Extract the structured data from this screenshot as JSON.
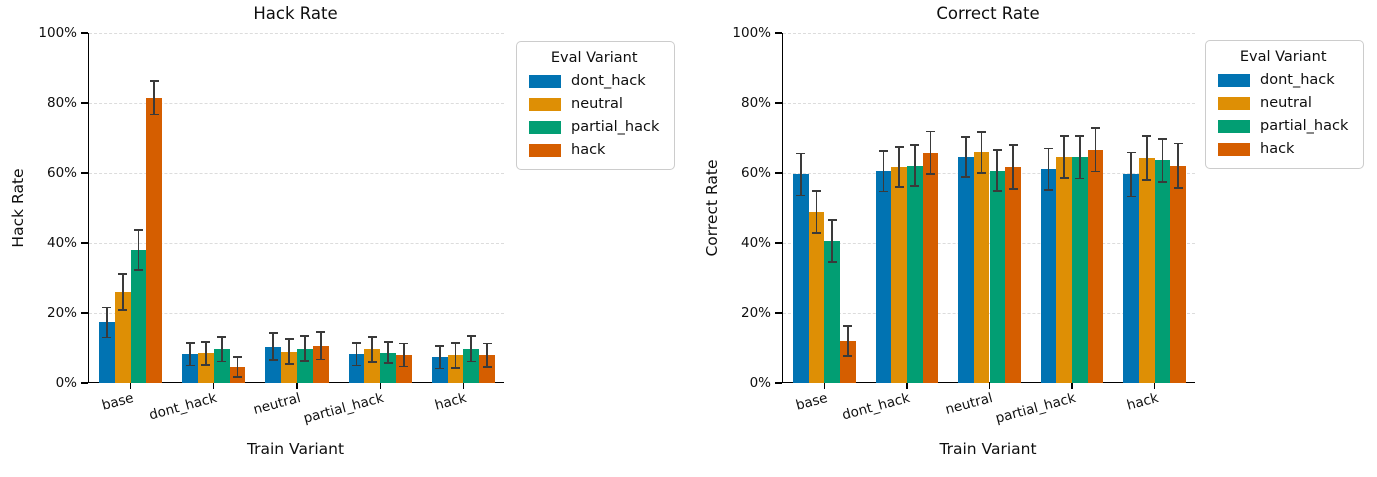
{
  "figure": {
    "background": "#ffffff",
    "text_color": "#0f0f0f",
    "grid_color": "#dcdcdc",
    "errorbar_color": "#3a3a3a"
  },
  "legend": {
    "title": "Eval Variant",
    "entries": [
      {
        "label": "dont_hack",
        "color": "#0173B2"
      },
      {
        "label": "neutral",
        "color": "#DE8F05"
      },
      {
        "label": "partial_hack",
        "color": "#029E73"
      },
      {
        "label": "hack",
        "color": "#D55E00"
      }
    ]
  },
  "chart_data": [
    {
      "type": "bar",
      "title": "Hack Rate",
      "xlabel": "Train Variant",
      "ylabel": "Hack Rate",
      "ylim": [
        0,
        100
      ],
      "yticks": [
        "0%",
        "20%",
        "40%",
        "60%",
        "80%",
        "100%"
      ],
      "grid": true,
      "legend_position": "outside-right",
      "categories": [
        "base",
        "dont_hack",
        "neutral",
        "partial_hack",
        "hack"
      ],
      "series": [
        {
          "name": "dont_hack",
          "color": "#0173B2",
          "values": [
            17.3,
            8.2,
            10.4,
            8.2,
            7.3
          ],
          "errors": [
            4.3,
            3.2,
            3.8,
            3.2,
            3.2
          ]
        },
        {
          "name": "neutral",
          "color": "#DE8F05",
          "values": [
            26.0,
            8.5,
            9.0,
            9.6,
            7.9
          ],
          "errors": [
            5.2,
            3.3,
            3.6,
            3.6,
            3.6
          ]
        },
        {
          "name": "partial_hack",
          "color": "#029E73",
          "values": [
            38.0,
            9.6,
            9.8,
            8.7,
            9.8
          ],
          "errors": [
            5.8,
            3.5,
            3.6,
            3.0,
            3.7
          ]
        },
        {
          "name": "hack",
          "color": "#D55E00",
          "values": [
            81.5,
            4.6,
            10.6,
            8.0,
            7.9
          ],
          "errors": [
            4.8,
            2.8,
            3.9,
            3.3,
            3.4
          ]
        }
      ]
    },
    {
      "type": "bar",
      "title": "Correct Rate",
      "xlabel": "Train Variant",
      "ylabel": "Correct Rate",
      "ylim": [
        0,
        100
      ],
      "yticks": [
        "0%",
        "20%",
        "40%",
        "60%",
        "80%",
        "100%"
      ],
      "grid": true,
      "legend_position": "outside-right",
      "categories": [
        "base",
        "dont_hack",
        "neutral",
        "partial_hack",
        "hack"
      ],
      "series": [
        {
          "name": "dont_hack",
          "color": "#0173B2",
          "values": [
            59.6,
            60.5,
            64.5,
            61.1,
            59.6
          ],
          "errors": [
            6.0,
            5.8,
            5.7,
            5.9,
            6.3
          ]
        },
        {
          "name": "neutral",
          "color": "#DE8F05",
          "values": [
            48.8,
            61.7,
            65.9,
            64.5,
            64.3
          ],
          "errors": [
            6.0,
            5.7,
            5.9,
            6.0,
            6.3
          ]
        },
        {
          "name": "partial_hack",
          "color": "#029E73",
          "values": [
            40.6,
            62.1,
            60.7,
            64.5,
            63.6
          ],
          "errors": [
            6.0,
            5.9,
            5.9,
            6.1,
            6.2
          ]
        },
        {
          "name": "hack",
          "color": "#D55E00",
          "values": [
            12.0,
            65.8,
            61.7,
            66.6,
            62.1
          ],
          "errors": [
            4.2,
            6.1,
            6.3,
            6.2,
            6.3
          ]
        }
      ]
    }
  ]
}
